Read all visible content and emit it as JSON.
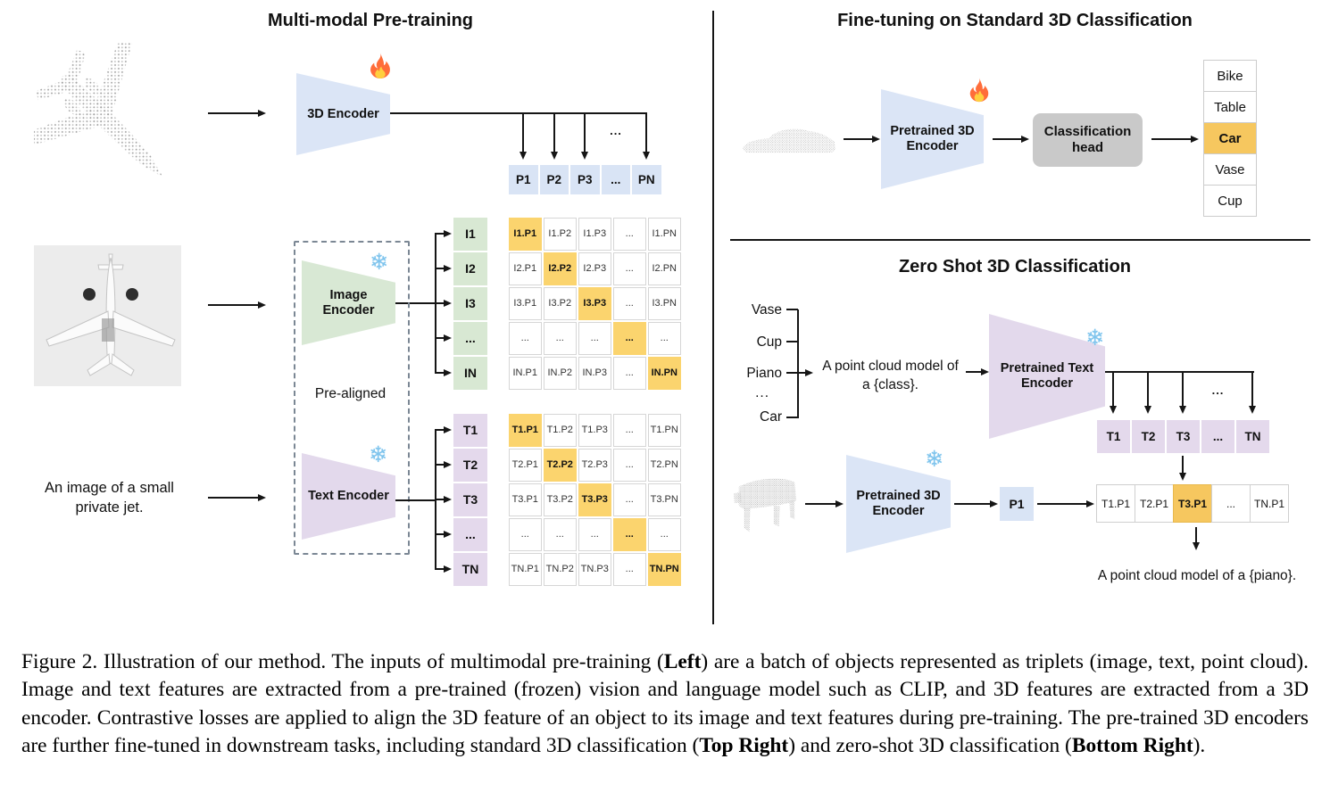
{
  "colors": {
    "encoder_blue": "#dbe5f6",
    "encoder_green": "#d8e8d4",
    "encoder_purple": "#e3d9ec",
    "matrix_highlight": "#fbd46e",
    "class_highlight": "#f6c75f",
    "head_gray": "#c9c9c9"
  },
  "pretraining": {
    "title": "Multi-modal Pre-training",
    "point_cloud": "airplane-point-cloud",
    "image_input": "airplane-photo",
    "text_input": "An image of a small private jet.",
    "encoder_3d": {
      "label": "3D Encoder",
      "icon": "fire"
    },
    "image_encoder": {
      "label": "Image Encoder",
      "icon": "snowflake"
    },
    "text_encoder": {
      "label": "Text Encoder",
      "icon": "snowflake"
    },
    "prealigned": "Pre-aligned",
    "ellipsis": "...",
    "p_row": [
      "P1",
      "P2",
      "P3",
      "...",
      "PN"
    ],
    "i_labels": [
      "I1",
      "I2",
      "I3",
      "...",
      "IN"
    ],
    "t_labels": [
      "T1",
      "T2",
      "T3",
      "...",
      "TN"
    ],
    "i_matrix": [
      [
        {
          "label": "I1.P1",
          "hl": true
        },
        {
          "label": "I1.P2"
        },
        {
          "label": "I1.P3"
        },
        {
          "label": "..."
        },
        {
          "label": "I1.PN"
        }
      ],
      [
        {
          "label": "I2.P1"
        },
        {
          "label": "I2.P2",
          "hl": true
        },
        {
          "label": "I2.P3"
        },
        {
          "label": "..."
        },
        {
          "label": "I2.PN"
        }
      ],
      [
        {
          "label": "I3.P1"
        },
        {
          "label": "I3.P2"
        },
        {
          "label": "I3.P3",
          "hl": true
        },
        {
          "label": "..."
        },
        {
          "label": "I3.PN"
        }
      ],
      [
        {
          "label": "..."
        },
        {
          "label": "..."
        },
        {
          "label": "..."
        },
        {
          "label": "...",
          "hl": true
        },
        {
          "label": "..."
        }
      ],
      [
        {
          "label": "IN.P1"
        },
        {
          "label": "IN.P2"
        },
        {
          "label": "IN.P3"
        },
        {
          "label": "..."
        },
        {
          "label": "IN.PN",
          "hl": true
        }
      ]
    ],
    "t_matrix": [
      [
        {
          "label": "T1.P1",
          "hl": true
        },
        {
          "label": "T1.P2"
        },
        {
          "label": "T1.P3"
        },
        {
          "label": "..."
        },
        {
          "label": "T1.PN"
        }
      ],
      [
        {
          "label": "T2.P1"
        },
        {
          "label": "T2.P2",
          "hl": true
        },
        {
          "label": "T2.P3"
        },
        {
          "label": "..."
        },
        {
          "label": "T2.PN"
        }
      ],
      [
        {
          "label": "T3.P1"
        },
        {
          "label": "T3.P2"
        },
        {
          "label": "T3.P3",
          "hl": true
        },
        {
          "label": "..."
        },
        {
          "label": "T3.PN"
        }
      ],
      [
        {
          "label": "..."
        },
        {
          "label": "..."
        },
        {
          "label": "..."
        },
        {
          "label": "...",
          "hl": true
        },
        {
          "label": "..."
        }
      ],
      [
        {
          "label": "TN.P1"
        },
        {
          "label": "TN.P2"
        },
        {
          "label": "TN.P3"
        },
        {
          "label": "..."
        },
        {
          "label": "TN.PN",
          "hl": true
        }
      ]
    ]
  },
  "finetune": {
    "title": "Fine-tuning on Standard 3D Classification",
    "point_cloud": "car-point-cloud",
    "encoder": {
      "label": "Pretrained 3D Encoder",
      "icon": "fire"
    },
    "head": {
      "label": "Classification head"
    },
    "classes": [
      {
        "label": "Bike"
      },
      {
        "label": "Table"
      },
      {
        "label": "Car",
        "hl": true
      },
      {
        "label": "Vase"
      },
      {
        "label": "Cup"
      }
    ]
  },
  "zeroshot": {
    "title": "Zero Shot 3D Classification",
    "candidates": [
      "Vase",
      "Cup",
      "Piano",
      "...",
      "Car"
    ],
    "prompt": "A point cloud model of a {class}.",
    "text_encoder": {
      "label": "Pretrained Text Encoder",
      "icon": "snowflake"
    },
    "encoder": {
      "label": "Pretrained 3D Encoder",
      "icon": "snowflake"
    },
    "point_cloud": "piano-point-cloud",
    "t_row": [
      "T1",
      "T2",
      "T3",
      "...",
      "TN"
    ],
    "p_cell": "P1",
    "ellipsis": "...",
    "result_row": [
      {
        "label": "T1.P1"
      },
      {
        "label": "T2.P1"
      },
      {
        "label": "T3.P1",
        "hl": true
      },
      {
        "label": "..."
      },
      {
        "label": "TN.P1"
      }
    ],
    "output": "A point cloud model of a {piano}."
  },
  "caption": {
    "segments": [
      {
        "text": "Figure 2. Illustration of our method. The inputs of multimodal pre-training ("
      },
      {
        "text": "Left",
        "bold": true
      },
      {
        "text": ") are a batch of objects represented as triplets (image, text, point cloud). Image and text features are extracted from a pre-trained (frozen) vision and language model such as CLIP, and 3D features are extracted from a 3D encoder. Contrastive losses are applied to align the 3D feature of an object to its image and text features during pre-training. The pre-trained 3D encoders are further fine-tuned in downstream tasks, including standard 3D classification ("
      },
      {
        "text": "Top Right",
        "bold": true
      },
      {
        "text": ") and zero-shot 3D classification ("
      },
      {
        "text": "Bottom Right",
        "bold": true
      },
      {
        "text": ")."
      }
    ]
  }
}
